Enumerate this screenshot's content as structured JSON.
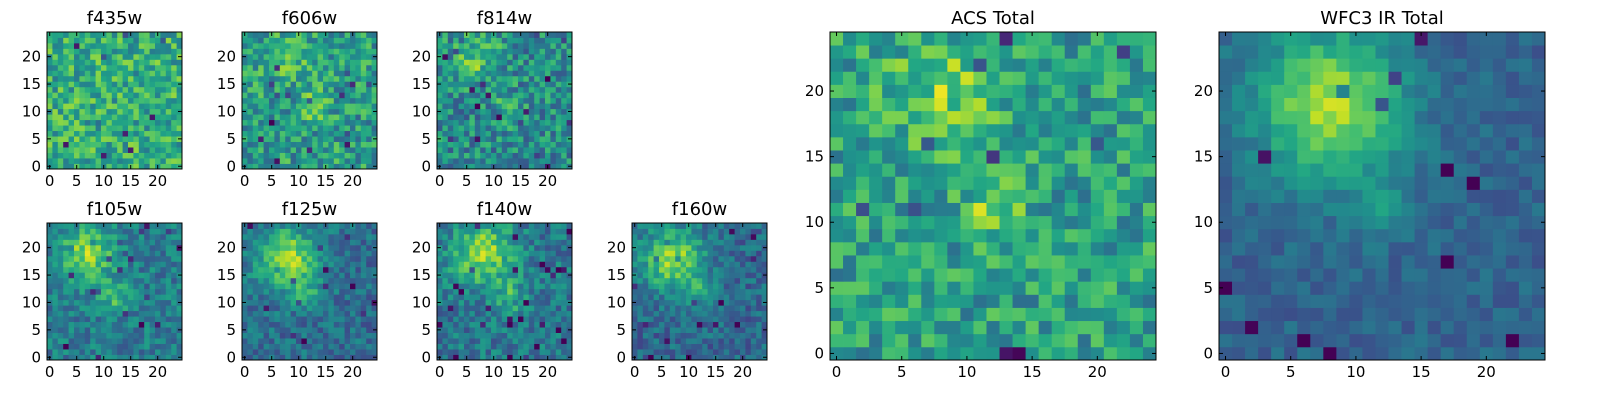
{
  "figure": {
    "title": ""
  },
  "chart_data": [
    {
      "id": "f435w",
      "type": "heatmap",
      "title": "f435w",
      "size": 25,
      "xlim": [
        0,
        24
      ],
      "ylim": [
        0,
        24
      ],
      "xticks": [
        0,
        5,
        10,
        15,
        20
      ],
      "yticks": [
        0,
        5,
        10,
        15,
        20
      ],
      "colormap": "viridis",
      "blobs": [],
      "noise": 0.22,
      "base": 0.62,
      "seed": 11
    },
    {
      "id": "f606w",
      "type": "heatmap",
      "title": "f606w",
      "size": 25,
      "xlim": [
        0,
        24
      ],
      "ylim": [
        0,
        24
      ],
      "xticks": [
        0,
        5,
        10,
        15,
        20
      ],
      "yticks": [
        0,
        5,
        10,
        15,
        20
      ],
      "colormap": "viridis",
      "blobs": [
        {
          "x": 8,
          "y": 20,
          "a": 0.18,
          "s": 3
        },
        {
          "x": 13,
          "y": 11,
          "a": 0.18,
          "s": 2
        }
      ],
      "noise": 0.22,
      "base": 0.55,
      "seed": 23
    },
    {
      "id": "f814w",
      "type": "heatmap",
      "title": "f814w",
      "size": 25,
      "xlim": [
        0,
        24
      ],
      "ylim": [
        0,
        24
      ],
      "xticks": [
        0,
        5,
        10,
        15,
        20
      ],
      "yticks": [
        0,
        5,
        10,
        15,
        20
      ],
      "colormap": "viridis",
      "blobs": [
        {
          "x": 7,
          "y": 20,
          "a": 0.25,
          "s": 3
        },
        {
          "x": 13,
          "y": 11,
          "a": 0.15,
          "s": 2
        }
      ],
      "noise": 0.22,
      "base": 0.48,
      "seed": 37
    },
    {
      "id": "f105w",
      "type": "heatmap",
      "title": "f105w",
      "size": 25,
      "xlim": [
        0,
        24
      ],
      "ylim": [
        0,
        24
      ],
      "xticks": [
        0,
        5,
        10,
        15,
        20
      ],
      "yticks": [
        0,
        5,
        10,
        15,
        20
      ],
      "colormap": "viridis",
      "blobs": [
        {
          "x": 7,
          "y": 19,
          "a": 0.4,
          "s": 3.5
        },
        {
          "x": 12,
          "y": 11,
          "a": 0.25,
          "s": 2
        }
      ],
      "noise": 0.15,
      "base": 0.42,
      "seed": 41
    },
    {
      "id": "f125w",
      "type": "heatmap",
      "title": "f125w",
      "size": 25,
      "xlim": [
        0,
        24
      ],
      "ylim": [
        0,
        24
      ],
      "xticks": [
        0,
        5,
        10,
        15,
        20
      ],
      "yticks": [
        0,
        5,
        10,
        15,
        20
      ],
      "colormap": "viridis",
      "blobs": [
        {
          "x": 8,
          "y": 18,
          "a": 0.5,
          "s": 4
        },
        {
          "x": 12,
          "y": 11,
          "a": 0.2,
          "s": 2
        }
      ],
      "noise": 0.14,
      "base": 0.36,
      "seed": 53
    },
    {
      "id": "f140w",
      "type": "heatmap",
      "title": "f140w",
      "size": 25,
      "xlim": [
        0,
        24
      ],
      "ylim": [
        0,
        24
      ],
      "xticks": [
        0,
        5,
        10,
        15,
        20
      ],
      "yticks": [
        0,
        5,
        10,
        15,
        20
      ],
      "colormap": "viridis",
      "blobs": [
        {
          "x": 8,
          "y": 19,
          "a": 0.45,
          "s": 4
        },
        {
          "x": 13,
          "y": 11,
          "a": 0.25,
          "s": 2
        }
      ],
      "noise": 0.16,
      "base": 0.4,
      "seed": 67
    },
    {
      "id": "f160w",
      "type": "heatmap",
      "title": "f160w",
      "size": 25,
      "xlim": [
        0,
        24
      ],
      "ylim": [
        0,
        24
      ],
      "xticks": [
        0,
        5,
        10,
        15,
        20
      ],
      "yticks": [
        0,
        5,
        10,
        15,
        20
      ],
      "colormap": "viridis",
      "blobs": [
        {
          "x": 7,
          "y": 18,
          "a": 0.5,
          "s": 4
        },
        {
          "x": 12,
          "y": 12,
          "a": 0.22,
          "s": 2
        }
      ],
      "noise": 0.14,
      "base": 0.34,
      "seed": 79
    },
    {
      "id": "acs_total",
      "type": "heatmap",
      "title": "ACS Total",
      "size": 25,
      "xlim": [
        0,
        24
      ],
      "ylim": [
        0,
        24
      ],
      "xticks": [
        0,
        5,
        10,
        15,
        20
      ],
      "yticks": [
        0,
        5,
        10,
        15,
        20
      ],
      "colormap": "viridis",
      "blobs": [
        {
          "x": 8,
          "y": 20,
          "a": 0.22,
          "s": 3
        },
        {
          "x": 12,
          "y": 11,
          "a": 0.28,
          "s": 1.5
        }
      ],
      "noise": 0.2,
      "base": 0.56,
      "seed": 97
    },
    {
      "id": "wfc3_ir_total",
      "type": "heatmap",
      "title": "WFC3 IR Total",
      "size": 25,
      "xlim": [
        0,
        24
      ],
      "ylim": [
        0,
        24
      ],
      "xticks": [
        0,
        5,
        10,
        15,
        20
      ],
      "yticks": [
        0,
        5,
        10,
        15,
        20
      ],
      "colormap": "viridis",
      "blobs": [
        {
          "x": 8,
          "y": 19,
          "a": 0.55,
          "s": 4
        },
        {
          "x": 12,
          "y": 11,
          "a": 0.2,
          "s": 1.6
        }
      ],
      "noise": 0.08,
      "base": 0.32,
      "seed": 113
    }
  ]
}
